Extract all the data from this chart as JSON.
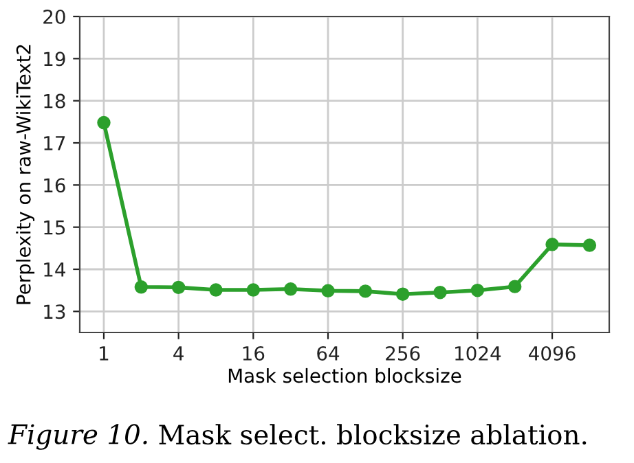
{
  "chart_data": {
    "type": "line",
    "xlabel": "Mask selection blocksize",
    "ylabel": "Perplexity on raw-WikiText2",
    "x": [
      1,
      2,
      4,
      8,
      16,
      32,
      64,
      128,
      256,
      512,
      1024,
      2048,
      4096,
      8192
    ],
    "series": [
      {
        "color": "#2ca02c",
        "values": [
          17.48,
          13.58,
          13.57,
          13.51,
          13.51,
          13.53,
          13.49,
          13.48,
          13.41,
          13.45,
          13.5,
          13.59,
          14.59,
          14.57
        ]
      }
    ],
    "log": "x",
    "xlim": [
      0.64,
      11800
    ],
    "xticks": [
      1,
      4,
      16,
      64,
      256,
      1024,
      4096
    ],
    "ylim": [
      12.5,
      20
    ],
    "yticks": [
      13,
      14,
      15,
      16,
      17,
      18,
      19,
      20
    ],
    "grid": true,
    "marker": "circle",
    "line_style": "solid",
    "annotations": [
      "Figure 10.",
      "Mask select. blocksize ablation."
    ]
  }
}
